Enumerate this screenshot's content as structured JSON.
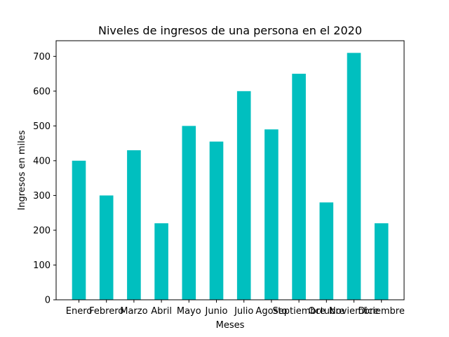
{
  "chart_data": {
    "type": "bar",
    "title": "Niveles de ingresos de una persona en el 2020",
    "xlabel": "Meses",
    "ylabel": "Ingresos en miles",
    "categories": [
      "Enero",
      "Febrero",
      "Marzo",
      "Abril",
      "Mayo",
      "Junio",
      "Julio",
      "Agosto",
      "Septiembre",
      "Octubre",
      "Noviembre",
      "Diciembre"
    ],
    "values": [
      400,
      300,
      430,
      220,
      500,
      455,
      600,
      490,
      650,
      280,
      710,
      220
    ],
    "ylim": [
      0,
      745
    ],
    "yticks": [
      0,
      100,
      200,
      300,
      400,
      500,
      600,
      700
    ],
    "grid": false,
    "colors": {
      "bar": "#00bfbf",
      "axis": "#000000",
      "background": "#ffffff"
    }
  }
}
